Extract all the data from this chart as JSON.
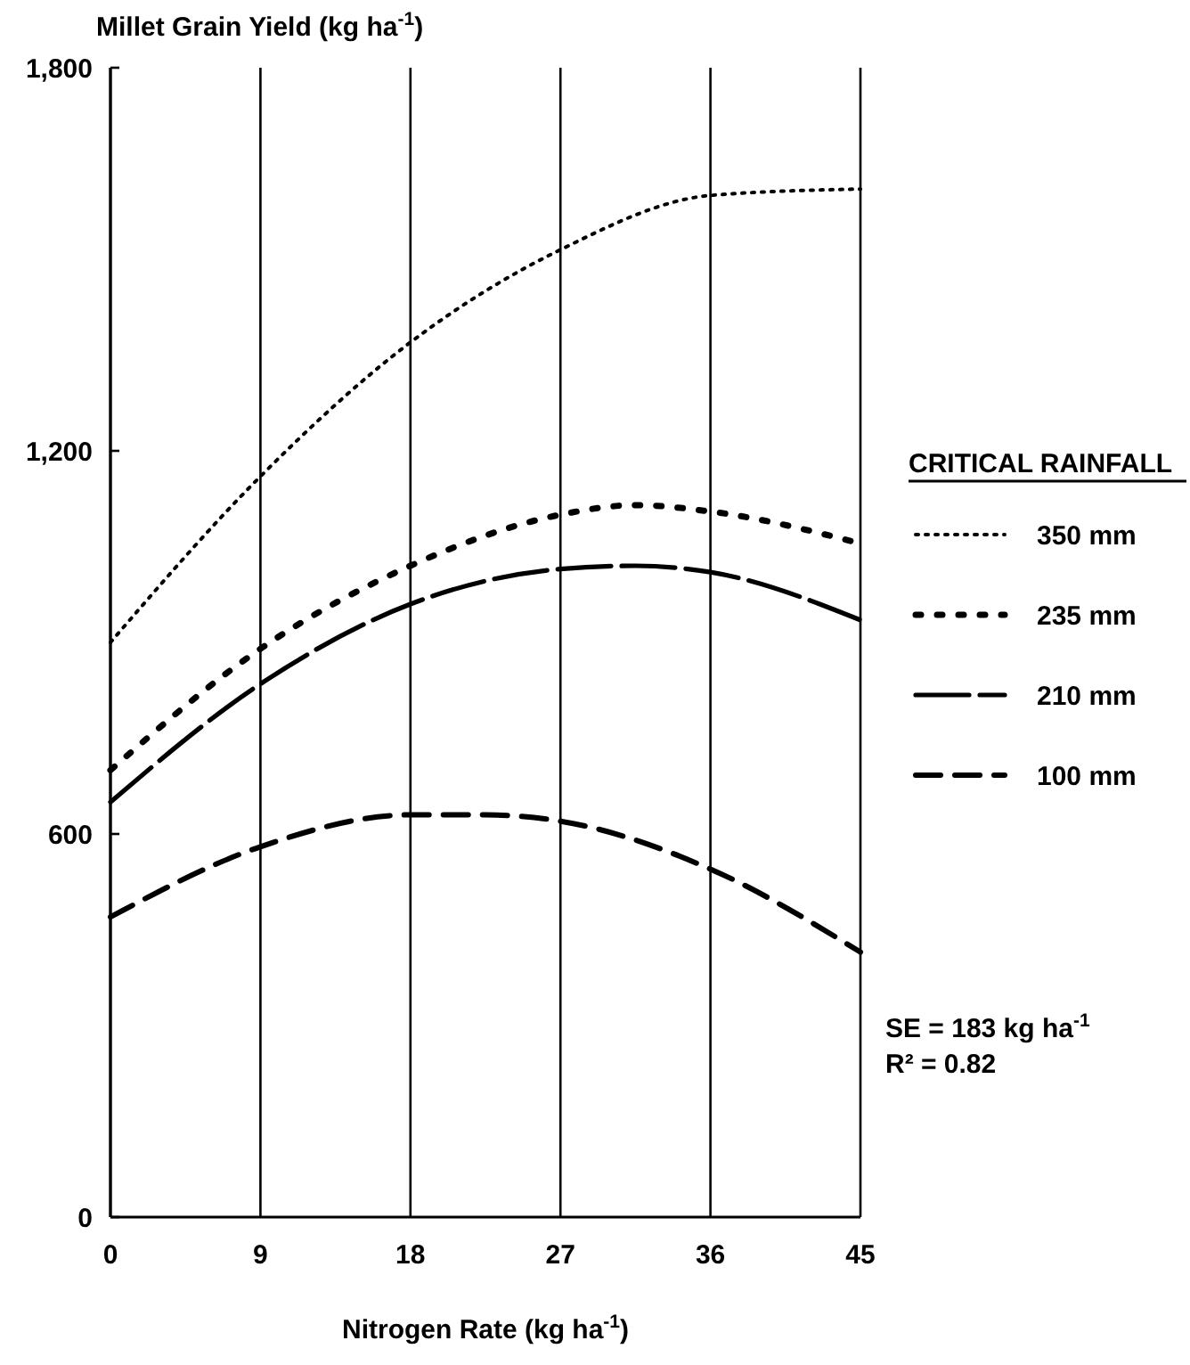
{
  "chart_data": {
    "type": "line",
    "xlabel": "Nitrogen Rate (kg ha$^{-1}$)",
    "ylabel": "Millet Grain Yield (kg ha$^{-1}$)",
    "legend_title": "CRITICAL RAINFALL",
    "legend": "right",
    "grid": "x",
    "marker": "none",
    "xlim": [
      0,
      45
    ],
    "xticks": [
      0,
      9,
      18,
      27,
      36,
      45
    ],
    "ylim": [
      0,
      1800
    ],
    "yticks": [
      {
        "value": 0,
        "label": "0"
      },
      {
        "value": 600,
        "label": "600"
      },
      {
        "value": 1200,
        "label": "1,200"
      },
      {
        "value": 1800,
        "label": "1,800"
      }
    ],
    "annotations": [
      "SE = 183 kg ha$^{-1}$",
      "R² = 0.82"
    ],
    "series": [
      {
        "name": "350 mm",
        "color": "#000000",
        "line_style": "dotted",
        "x": [
          0,
          9,
          18,
          27,
          36,
          45
        ],
        "values": [
          900,
          1160,
          1370,
          1515,
          1600,
          1610
        ]
      },
      {
        "name": "235 mm",
        "color": "#000000",
        "line_style": "dotted",
        "x": [
          0,
          9,
          18,
          27,
          31.5,
          36,
          45
        ],
        "values": [
          700,
          890,
          1020,
          1100,
          1115,
          1105,
          1055
        ]
      },
      {
        "name": "210 mm",
        "color": "#000000",
        "line_style": "dashed",
        "x": [
          0,
          9,
          18,
          27,
          31.5,
          36,
          45
        ],
        "values": [
          650,
          835,
          960,
          1015,
          1020,
          1010,
          935
        ]
      },
      {
        "name": "100 mm",
        "color": "#000000",
        "line_style": "dashed",
        "x": [
          0,
          9,
          18,
          22.5,
          27,
          36,
          45
        ],
        "values": [
          470,
          580,
          630,
          630,
          620,
          545,
          415
        ]
      }
    ]
  }
}
